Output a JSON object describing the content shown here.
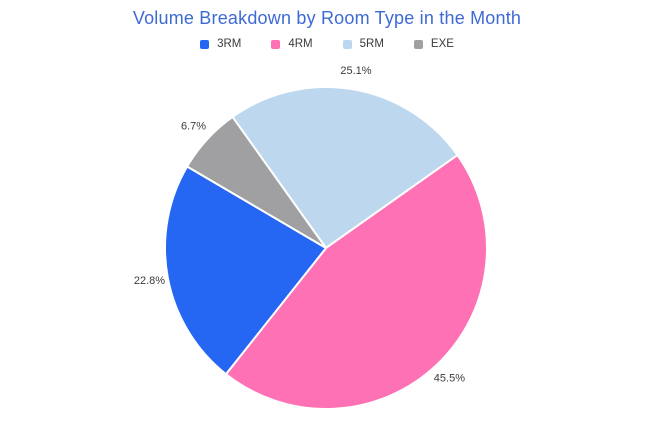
{
  "header": {
    "title": "Volume Breakdown by Room Type in the Month",
    "title_color": "#3E6AD5"
  },
  "chart_data": {
    "type": "pie",
    "title": "Volume Breakdown by Room Type in the Month",
    "categories": [
      "3RM",
      "4RM",
      "5RM",
      "EXE"
    ],
    "values": [
      22.8,
      45.5,
      25.1,
      6.7
    ],
    "value_labels": [
      "22.8%",
      "45.5%",
      "25.1%",
      "6.7%"
    ],
    "colors": [
      "#2566F2",
      "#FF71B5",
      "#BCD7EE",
      "#A0A0A2"
    ],
    "unit": "%",
    "legend_position": "top",
    "legend_order": [
      "3RM",
      "4RM",
      "5RM",
      "EXE"
    ],
    "draw_order": [
      "5RM",
      "4RM",
      "3RM",
      "EXE"
    ],
    "direction": "clockwise",
    "rotation_cw_from_top_deg": -35.5,
    "label_position": "outside",
    "label_color": "#3B3B3B",
    "slice_border_color": "#FFFFFF"
  }
}
